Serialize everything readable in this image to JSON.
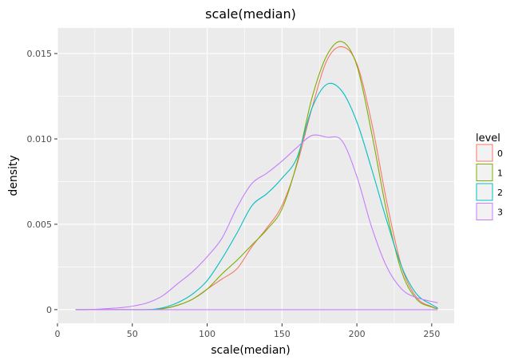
{
  "chart_data": {
    "type": "line",
    "title": "scale(median)",
    "xlabel": "scale(median)",
    "ylabel": "density",
    "xlim": [
      0,
      265
    ],
    "ylim": [
      -0.0008,
      0.0165
    ],
    "x_ticks": [
      0,
      50,
      100,
      150,
      200,
      250
    ],
    "x_tick_labels": [
      "0",
      "50",
      "100",
      "150",
      "200",
      "250"
    ],
    "y_ticks": [
      0,
      0.005,
      0.01,
      0.015
    ],
    "y_tick_labels": [
      "0",
      "0.005",
      "0.010",
      "0.015"
    ],
    "grid": true,
    "legend": {
      "title": "level",
      "position": "right"
    },
    "series": [
      {
        "name": "0",
        "color": "#F8766D",
        "x": [
          12,
          40,
          60,
          70,
          80,
          90,
          100,
          110,
          120,
          130,
          140,
          150,
          160,
          170,
          180,
          190,
          200,
          210,
          220,
          230,
          240,
          250,
          254
        ],
        "y": [
          0,
          0,
          0,
          5e-05,
          0.00025,
          0.0006,
          0.0012,
          0.0018,
          0.0024,
          0.0037,
          0.0048,
          0.0061,
          0.0085,
          0.0118,
          0.0146,
          0.0154,
          0.0144,
          0.0109,
          0.0063,
          0.0025,
          0.0007,
          0.00018,
          5e-05
        ]
      },
      {
        "name": "1",
        "color": "#7CAE00",
        "x": [
          12,
          40,
          60,
          70,
          80,
          90,
          100,
          110,
          120,
          130,
          140,
          150,
          160,
          170,
          180,
          190,
          200,
          210,
          220,
          230,
          240,
          250,
          254
        ],
        "y": [
          0,
          0,
          0,
          5e-05,
          0.00025,
          0.0006,
          0.0012,
          0.0021,
          0.0029,
          0.0038,
          0.0047,
          0.0059,
          0.0086,
          0.0124,
          0.0149,
          0.0157,
          0.0143,
          0.0103,
          0.0057,
          0.0022,
          0.0006,
          0.00015,
          5e-05
        ]
      },
      {
        "name": "2",
        "color": "#00BFC4",
        "x": [
          12,
          40,
          60,
          70,
          80,
          90,
          100,
          110,
          120,
          130,
          140,
          150,
          160,
          170,
          180,
          190,
          200,
          210,
          220,
          230,
          240,
          250,
          254
        ],
        "y": [
          0,
          0,
          0,
          0.0001,
          0.0004,
          0.0009,
          0.0017,
          0.003,
          0.0045,
          0.0061,
          0.0068,
          0.0077,
          0.0089,
          0.0118,
          0.0132,
          0.0128,
          0.011,
          0.0082,
          0.0052,
          0.0025,
          0.0009,
          0.0003,
          0.0001
        ]
      },
      {
        "name": "3",
        "color": "#C77CFF",
        "x": [
          12,
          20,
          40,
          50,
          60,
          70,
          80,
          90,
          100,
          110,
          120,
          130,
          140,
          150,
          160,
          170,
          180,
          190,
          200,
          210,
          220,
          230,
          240,
          254
        ],
        "y": [
          0,
          0,
          0.0001,
          0.0002,
          0.0004,
          0.0008,
          0.0015,
          0.0022,
          0.0031,
          0.0042,
          0.006,
          0.0074,
          0.008,
          0.0087,
          0.0095,
          0.0102,
          0.0101,
          0.0099,
          0.0078,
          0.0048,
          0.0025,
          0.0012,
          0.0007,
          0.0004
        ]
      }
    ],
    "baseline": {
      "color": "#C77CFF",
      "x": [
        12,
        254
      ],
      "y": [
        0,
        0
      ]
    }
  }
}
